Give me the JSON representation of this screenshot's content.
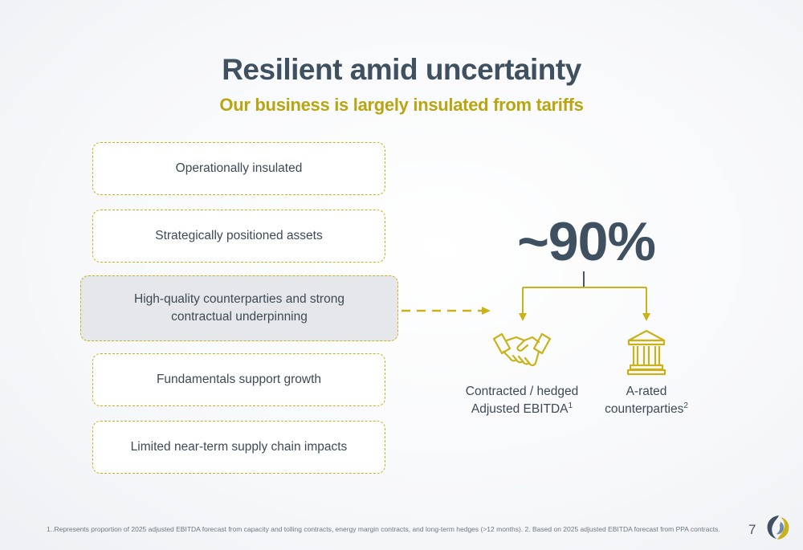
{
  "header": {
    "title": "Resilient amid uncertainty",
    "subtitle": "Our business is largely insulated from tariffs"
  },
  "pillars": [
    {
      "label": "Operationally insulated"
    },
    {
      "label": "Strategically positioned assets"
    },
    {
      "label": "High-quality counterparties and strong contractual underpinning"
    },
    {
      "label": "Fundamentals support growth"
    },
    {
      "label": "Limited near-term supply chain impacts"
    }
  ],
  "highlight": {
    "value": "~90%",
    "items": [
      {
        "icon": "handshake-icon",
        "label_line1": "Contracted / hedged",
        "label_line2": "Adjusted EBITDA",
        "footnote": "1"
      },
      {
        "icon": "bank-building-icon",
        "label_line1": "A-rated",
        "label_line2": "counterparties",
        "footnote": "2"
      }
    ]
  },
  "footer": {
    "footnote": "1..Represents proportion of 2025 adjusted EBITDA forecast from capacity and tolling contracts, energy margin contracts, and long-term hedges (>12 months). 2. Based on 2025 adjusted EBITDA forecast from PPA contracts.",
    "page_number": "7"
  },
  "colors": {
    "accent": "#c9b21a",
    "subtitle": "#b8a512",
    "title": "#3f5160",
    "highlight_box": "#e6e7ea"
  }
}
